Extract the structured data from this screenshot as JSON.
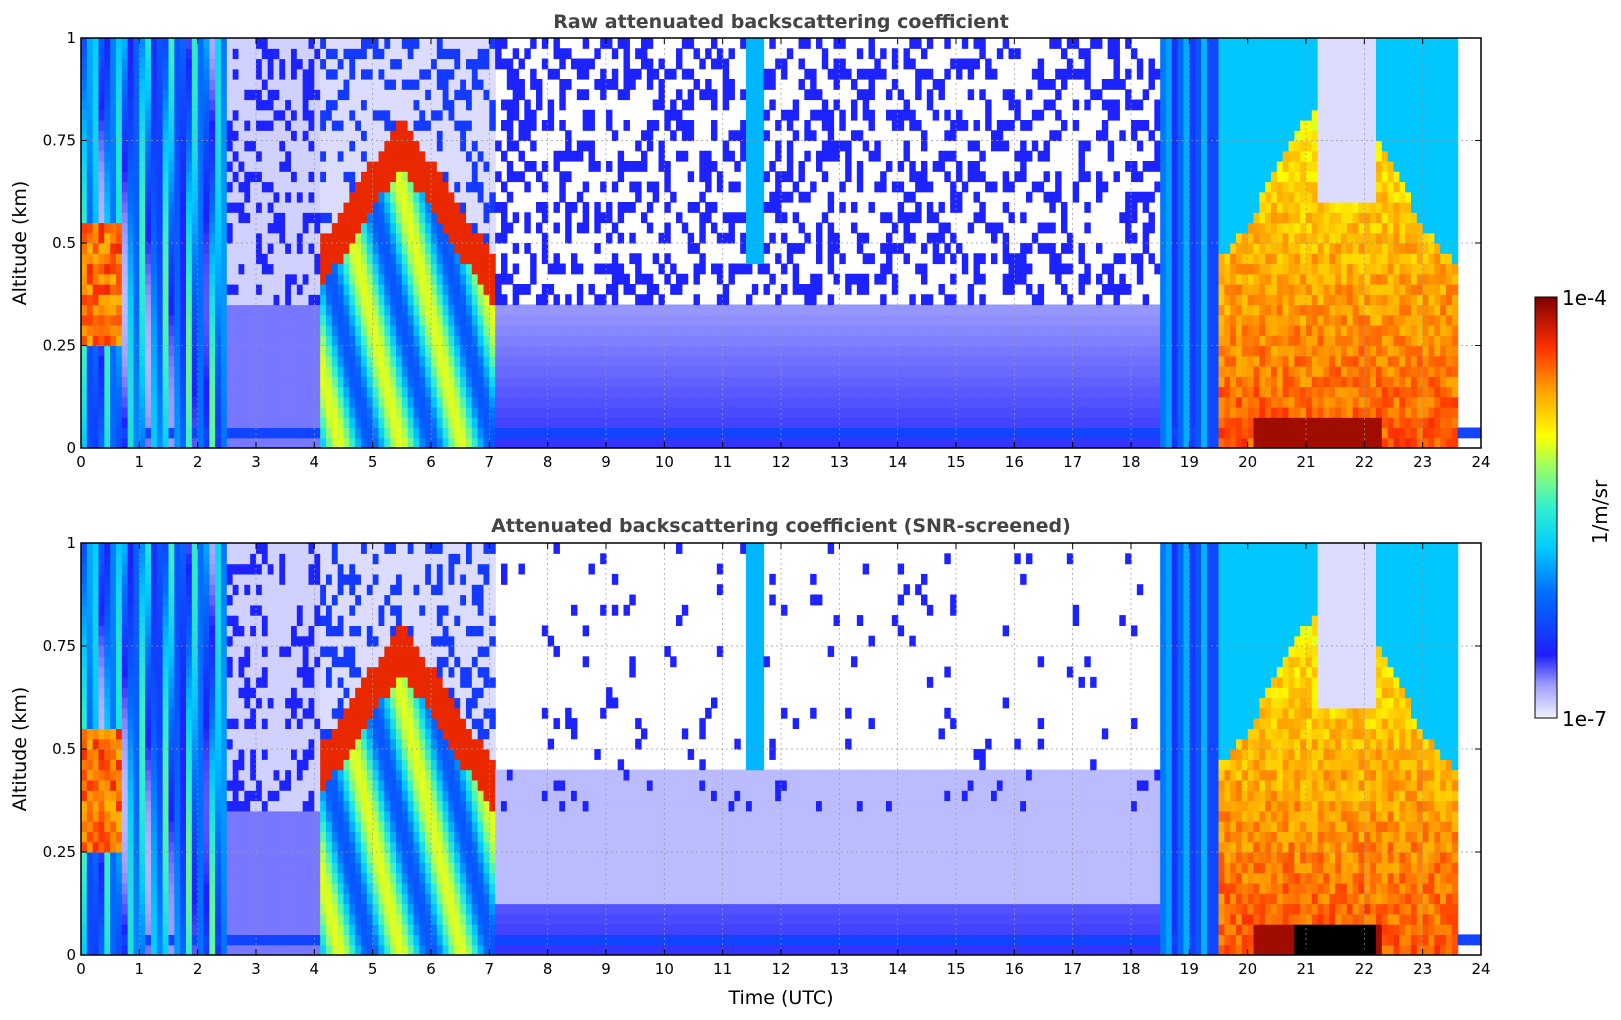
{
  "chart_data": [
    {
      "type": "heatmap",
      "title": "Raw attenuated backscattering coefficient",
      "xlabel": "",
      "ylabel": "Altitude (km)",
      "xlim": [
        0,
        24
      ],
      "ylim": [
        0,
        1
      ],
      "xticks": [
        "0",
        "1",
        "2",
        "3",
        "4",
        "5",
        "6",
        "7",
        "8",
        "9",
        "10",
        "11",
        "12",
        "13",
        "14",
        "15",
        "16",
        "17",
        "18",
        "19",
        "20",
        "21",
        "22",
        "23",
        "24"
      ],
      "yticks": [
        "0",
        "0.25",
        "0.5",
        "0.75",
        "1"
      ],
      "grid": true,
      "screened": false,
      "features": [
        {
          "desc": "near-surface aerosol layer",
          "t0": 0,
          "t1": 23.6,
          "z0": 0.02,
          "z1": 0.06,
          "level": 0.22
        },
        {
          "desc": "low clouds",
          "t0": 0,
          "t1": 2.5,
          "z0": 0,
          "z1": 1,
          "level": 0.35
        },
        {
          "desc": "cloud layer",
          "t0": 4.1,
          "t1": 7.1,
          "z0": 0.2,
          "z1": 0.8,
          "level": 0.8
        },
        {
          "desc": "thick cloud",
          "t0": 18.5,
          "t1": 23.6,
          "z0": 0,
          "z1": 1,
          "level": 0.75
        },
        {
          "desc": "dense boundary layer",
          "t0": 20.1,
          "t1": 22.3,
          "z0": 0,
          "z1": 0.08,
          "level": 0.98
        }
      ]
    },
    {
      "type": "heatmap",
      "title": "Attenuated backscattering coefficient (SNR-screened)",
      "xlabel": "Time (UTC)",
      "ylabel": "Altitude (km)",
      "xlim": [
        0,
        24
      ],
      "ylim": [
        0,
        1
      ],
      "xticks": [
        "0",
        "1",
        "2",
        "3",
        "4",
        "5",
        "6",
        "7",
        "8",
        "9",
        "10",
        "11",
        "12",
        "13",
        "14",
        "15",
        "16",
        "17",
        "18",
        "19",
        "20",
        "21",
        "22",
        "23",
        "24"
      ],
      "yticks": [
        "0",
        "0.25",
        "0.5",
        "0.75",
        "1"
      ],
      "grid": true,
      "screened": true,
      "features": [
        {
          "desc": "near-surface aerosol layer",
          "t0": 0,
          "t1": 23.6,
          "z0": 0.02,
          "z1": 0.06,
          "level": 0.22
        },
        {
          "desc": "low clouds",
          "t0": 0,
          "t1": 2.5,
          "z0": 0,
          "z1": 1,
          "level": 0.35
        },
        {
          "desc": "cloud layer",
          "t0": 4.1,
          "t1": 7.1,
          "z0": 0.2,
          "z1": 0.8,
          "level": 0.8
        },
        {
          "desc": "thick cloud",
          "t0": 18.5,
          "t1": 23.6,
          "z0": 0,
          "z1": 1,
          "level": 0.75
        },
        {
          "desc": "saturated",
          "t0": 20.8,
          "t1": 22.2,
          "z0": 0,
          "z1": 0.08,
          "level": 1.0
        }
      ]
    }
  ],
  "colorbar": {
    "max_label": "1e-4",
    "min_label": "1e-7",
    "label": "1/m/sr",
    "colormap": "jet"
  }
}
